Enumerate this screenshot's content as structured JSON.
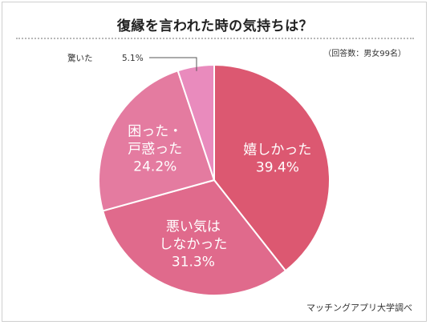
{
  "header": {
    "title": "復縁を言われた時の気持ちは？",
    "note": "（回答数：男女99名）"
  },
  "footer": {
    "source": "マッチングアプリ大学調べ"
  },
  "chart_data": {
    "type": "pie",
    "title": "復縁を言われた時の気持ちは？",
    "start_angle_deg": 0,
    "direction": "clockwise",
    "slices": [
      {
        "label_lines": [
          "嬉しかった"
        ],
        "value": 39.4,
        "value_label": "39.4%",
        "color": "#dc5871"
      },
      {
        "label_lines": [
          "悪い気は",
          "しなかった"
        ],
        "value": 31.3,
        "value_label": "31.3%",
        "color": "#e06a8c"
      },
      {
        "label_lines": [
          "困った・",
          "戸惑った"
        ],
        "value": 24.2,
        "value_label": "24.2%",
        "color": "#e47ba0"
      },
      {
        "label_lines": [
          "驚いた"
        ],
        "value": 5.1,
        "value_label": "5.1%",
        "color": "#e98bbd",
        "outside": true
      }
    ]
  }
}
